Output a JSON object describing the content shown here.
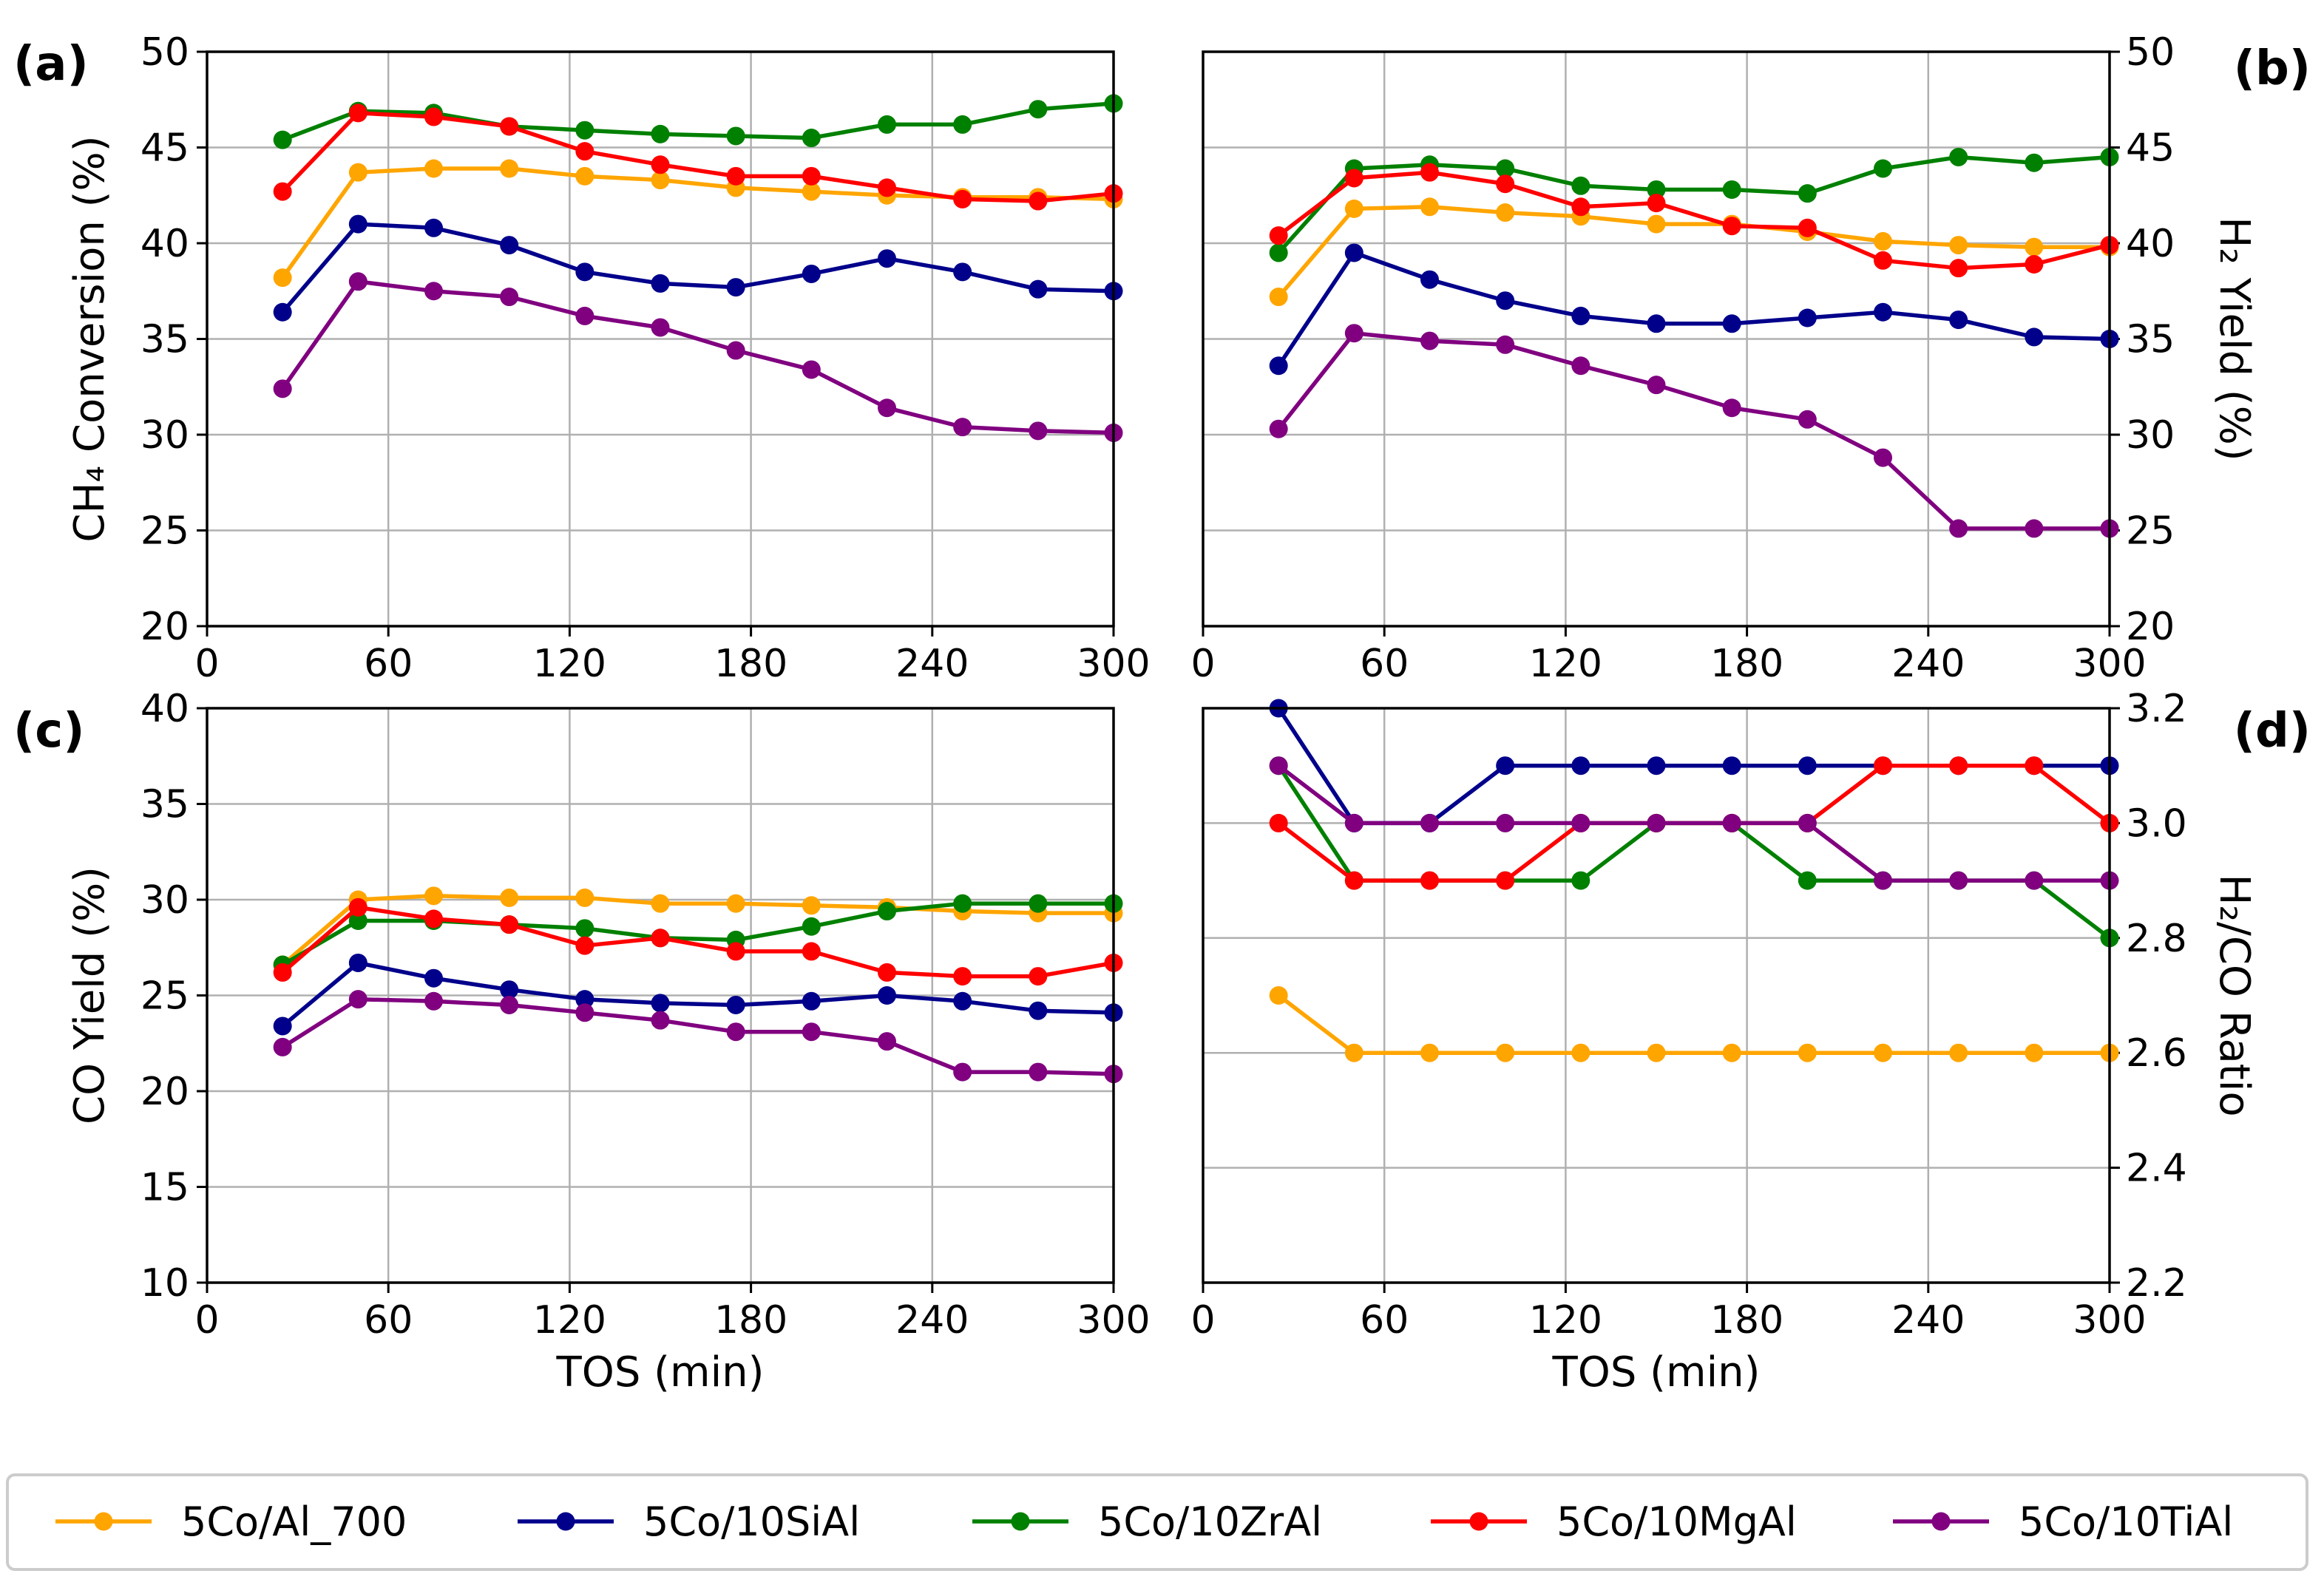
{
  "legend": [
    {
      "name": "5Co/Al_700",
      "color": "#ffa500"
    },
    {
      "name": "5Co/10SiAl",
      "color": "#00008b"
    },
    {
      "name": "5Co/10ZrAl",
      "color": "#008000"
    },
    {
      "name": "5Co/10MgAl",
      "color": "#ff0000"
    },
    {
      "name": "5Co/10TiAl",
      "color": "#800080"
    }
  ],
  "chart_data": [
    {
      "panel": "(a)",
      "type": "line",
      "xlabel": "",
      "ylabel": "CH₄ Conversion (%)",
      "xlim": [
        0,
        300
      ],
      "ylim": [
        20,
        50
      ],
      "xticks": [
        0,
        60,
        120,
        180,
        240,
        300
      ],
      "yticks": [
        20,
        25,
        30,
        35,
        40,
        45,
        50
      ],
      "grid": true,
      "x": [
        25,
        50,
        75,
        100,
        125,
        150,
        175,
        200,
        225,
        250,
        275,
        300
      ],
      "series": [
        {
          "name": "5Co/Al_700",
          "color": "#ffa500",
          "values": [
            38.2,
            43.7,
            43.9,
            43.9,
            43.5,
            43.3,
            42.9,
            42.7,
            42.5,
            42.4,
            42.4,
            42.3
          ]
        },
        {
          "name": "5Co/10SiAl",
          "color": "#00008b",
          "values": [
            36.4,
            41.0,
            40.8,
            39.9,
            38.5,
            37.9,
            37.7,
            38.4,
            39.2,
            38.5,
            37.6,
            37.5
          ]
        },
        {
          "name": "5Co/10ZrAl",
          "color": "#008000",
          "values": [
            45.4,
            46.9,
            46.8,
            46.1,
            45.9,
            45.7,
            45.6,
            45.5,
            46.2,
            46.2,
            47.0,
            47.3
          ]
        },
        {
          "name": "5Co/10MgAl",
          "color": "#ff0000",
          "values": [
            42.7,
            46.8,
            46.6,
            46.1,
            44.8,
            44.1,
            43.5,
            43.5,
            42.9,
            42.3,
            42.2,
            42.6
          ]
        },
        {
          "name": "5Co/10TiAl",
          "color": "#800080",
          "values": [
            32.4,
            38.0,
            37.5,
            37.2,
            36.2,
            35.6,
            34.4,
            33.4,
            31.4,
            30.4,
            30.2,
            30.1
          ]
        }
      ]
    },
    {
      "panel": "(b)",
      "type": "line",
      "xlabel": "",
      "ylabel": "H₂ Yield (%)",
      "xlim": [
        0,
        300
      ],
      "ylim": [
        20,
        50
      ],
      "xticks": [
        0,
        60,
        120,
        180,
        240,
        300
      ],
      "yticks": [
        20,
        25,
        30,
        35,
        40,
        45,
        50
      ],
      "grid": true,
      "x": [
        25,
        50,
        75,
        100,
        125,
        150,
        175,
        200,
        225,
        250,
        275,
        300
      ],
      "series": [
        {
          "name": "5Co/Al_700",
          "color": "#ffa500",
          "values": [
            37.2,
            41.8,
            41.9,
            41.6,
            41.4,
            41.0,
            41.0,
            40.6,
            40.1,
            39.9,
            39.8,
            39.8
          ]
        },
        {
          "name": "5Co/10SiAl",
          "color": "#00008b",
          "values": [
            33.6,
            39.5,
            38.1,
            37.0,
            36.2,
            35.8,
            35.8,
            36.1,
            36.4,
            36.0,
            35.1,
            35.0
          ]
        },
        {
          "name": "5Co/10ZrAl",
          "color": "#008000",
          "values": [
            39.5,
            43.9,
            44.1,
            43.9,
            43.0,
            42.8,
            42.8,
            42.6,
            43.9,
            44.5,
            44.2,
            44.5
          ]
        },
        {
          "name": "5Co/10MgAl",
          "color": "#ff0000",
          "values": [
            40.4,
            43.4,
            43.7,
            43.1,
            41.9,
            42.1,
            40.9,
            40.8,
            39.1,
            38.7,
            38.9,
            39.9
          ]
        },
        {
          "name": "5Co/10TiAl",
          "color": "#800080",
          "values": [
            30.3,
            35.3,
            34.9,
            34.7,
            33.6,
            32.6,
            31.4,
            30.8,
            28.8,
            25.1,
            25.1,
            25.1
          ]
        }
      ]
    },
    {
      "panel": "(c)",
      "type": "line",
      "xlabel": "TOS (min)",
      "ylabel": "CO Yield (%)",
      "xlim": [
        0,
        300
      ],
      "ylim": [
        10,
        40
      ],
      "xticks": [
        0,
        60,
        120,
        180,
        240,
        300
      ],
      "yticks": [
        10,
        15,
        20,
        25,
        30,
        35,
        40
      ],
      "grid": true,
      "x": [
        25,
        50,
        75,
        100,
        125,
        150,
        175,
        200,
        225,
        250,
        275,
        300
      ],
      "series": [
        {
          "name": "5Co/Al_700",
          "color": "#ffa500",
          "values": [
            26.6,
            30.0,
            30.2,
            30.1,
            30.1,
            29.8,
            29.8,
            29.7,
            29.6,
            29.4,
            29.3,
            29.3
          ]
        },
        {
          "name": "5Co/10SiAl",
          "color": "#00008b",
          "values": [
            23.4,
            26.7,
            25.9,
            25.3,
            24.8,
            24.6,
            24.5,
            24.7,
            25.0,
            24.7,
            24.2,
            24.1
          ]
        },
        {
          "name": "5Co/10ZrAl",
          "color": "#008000",
          "values": [
            26.6,
            28.9,
            28.9,
            28.7,
            28.5,
            28.0,
            27.9,
            28.6,
            29.4,
            29.8,
            29.8,
            29.8
          ]
        },
        {
          "name": "5Co/10MgAl",
          "color": "#ff0000",
          "values": [
            26.2,
            29.6,
            29.0,
            28.7,
            27.6,
            28.0,
            27.3,
            27.3,
            26.2,
            26.0,
            26.0,
            26.7
          ]
        },
        {
          "name": "5Co/10TiAl",
          "color": "#800080",
          "values": [
            22.3,
            24.8,
            24.7,
            24.5,
            24.1,
            23.7,
            23.1,
            23.1,
            22.6,
            21.0,
            21.0,
            20.9
          ]
        }
      ]
    },
    {
      "panel": "(d)",
      "type": "line",
      "xlabel": "TOS (min)",
      "ylabel": "H₂/CO Ratio",
      "xlim": [
        0,
        300
      ],
      "ylim": [
        2.2,
        3.2
      ],
      "xticks": [
        0,
        60,
        120,
        180,
        240,
        300
      ],
      "yticks": [
        2.2,
        2.4,
        2.6,
        2.8,
        3.0,
        3.2
      ],
      "ytick_labels": [
        "2.2",
        "2.4",
        "2.6",
        "2.8",
        "3.0",
        "3.2"
      ],
      "grid": true,
      "x": [
        25,
        50,
        75,
        100,
        125,
        150,
        175,
        200,
        225,
        250,
        275,
        300
      ],
      "series": [
        {
          "name": "5Co/Al_700",
          "color": "#ffa500",
          "values": [
            2.7,
            2.6,
            2.6,
            2.6,
            2.6,
            2.6,
            2.6,
            2.6,
            2.6,
            2.6,
            2.6,
            2.6
          ]
        },
        {
          "name": "5Co/10SiAl",
          "color": "#00008b",
          "values": [
            3.2,
            3.0,
            3.0,
            3.1,
            3.1,
            3.1,
            3.1,
            3.1,
            3.1,
            3.1,
            3.1,
            3.1
          ]
        },
        {
          "name": "5Co/10ZrAl",
          "color": "#008000",
          "values": [
            3.1,
            2.9,
            2.9,
            2.9,
            2.9,
            3.0,
            3.0,
            2.9,
            2.9,
            2.9,
            2.9,
            2.8
          ]
        },
        {
          "name": "5Co/10MgAl",
          "color": "#ff0000",
          "values": [
            3.0,
            2.9,
            2.9,
            2.9,
            3.0,
            3.0,
            3.0,
            3.0,
            3.1,
            3.1,
            3.1,
            3.0
          ]
        },
        {
          "name": "5Co/10TiAl",
          "color": "#800080",
          "values": [
            3.1,
            3.0,
            3.0,
            3.0,
            3.0,
            3.0,
            3.0,
            3.0,
            2.9,
            2.9,
            2.9,
            2.9
          ]
        }
      ]
    }
  ]
}
